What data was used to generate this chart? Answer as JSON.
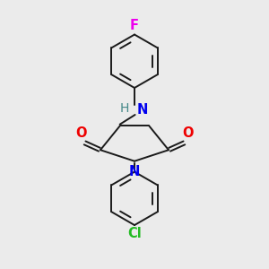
{
  "background_color": "#ebebeb",
  "bond_color": "#1a1a1a",
  "bond_width": 1.4,
  "atom_labels": {
    "F": {
      "color": "#ee00ee",
      "fontsize": 10.5,
      "fontweight": "bold"
    },
    "O": {
      "color": "#ee0000",
      "fontsize": 10.5,
      "fontweight": "bold"
    },
    "N_nh": {
      "color": "#0000ee",
      "fontsize": 10.5,
      "fontweight": "bold"
    },
    "H": {
      "color": "#448888",
      "fontsize": 10.0,
      "fontweight": "normal"
    },
    "N_ring": {
      "color": "#0000ee",
      "fontsize": 10.5,
      "fontweight": "bold"
    },
    "Cl": {
      "color": "#22bb22",
      "fontsize": 10.5,
      "fontweight": "bold"
    }
  },
  "figsize": [
    3.0,
    3.0
  ],
  "dpi": 100,
  "xlim": [
    0,
    10
  ],
  "ylim": [
    0,
    10
  ]
}
